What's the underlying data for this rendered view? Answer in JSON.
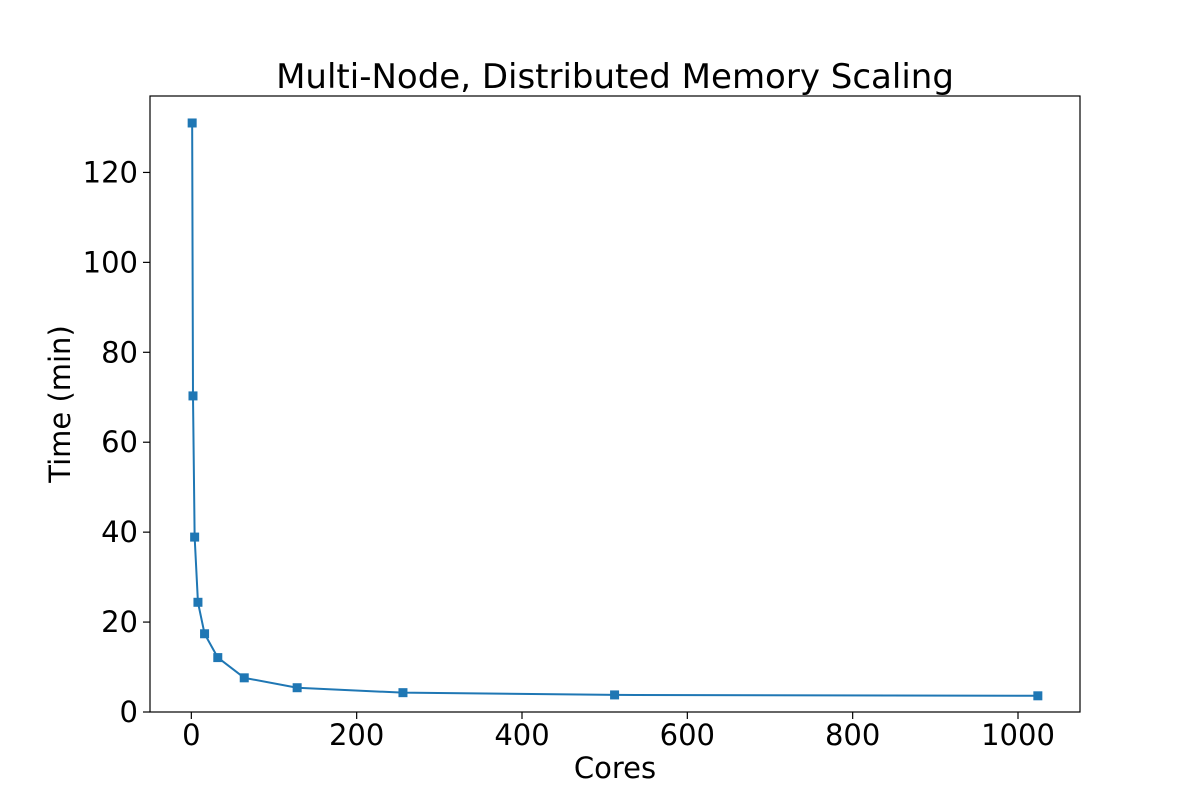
{
  "chart_data": {
    "type": "line",
    "title": "Multi-Node, Distributed Memory Scaling",
    "xlabel": "Cores",
    "ylabel": "Time (min)",
    "xlim": [
      -50,
      1075
    ],
    "ylim": [
      0,
      137
    ],
    "x_ticks": [
      0,
      200,
      400,
      600,
      800,
      1000
    ],
    "y_ticks": [
      0,
      20,
      40,
      60,
      80,
      100,
      120
    ],
    "grid": false,
    "legend": "none",
    "series": [
      {
        "x": [
          1,
          2,
          4,
          8,
          16,
          32,
          64,
          128,
          256,
          512,
          1024
        ],
        "y": [
          131.0,
          70.3,
          38.9,
          24.4,
          17.4,
          12.1,
          7.6,
          5.4,
          4.3,
          3.8,
          3.6
        ],
        "color": "#1f77b4",
        "marker": "square"
      }
    ]
  }
}
